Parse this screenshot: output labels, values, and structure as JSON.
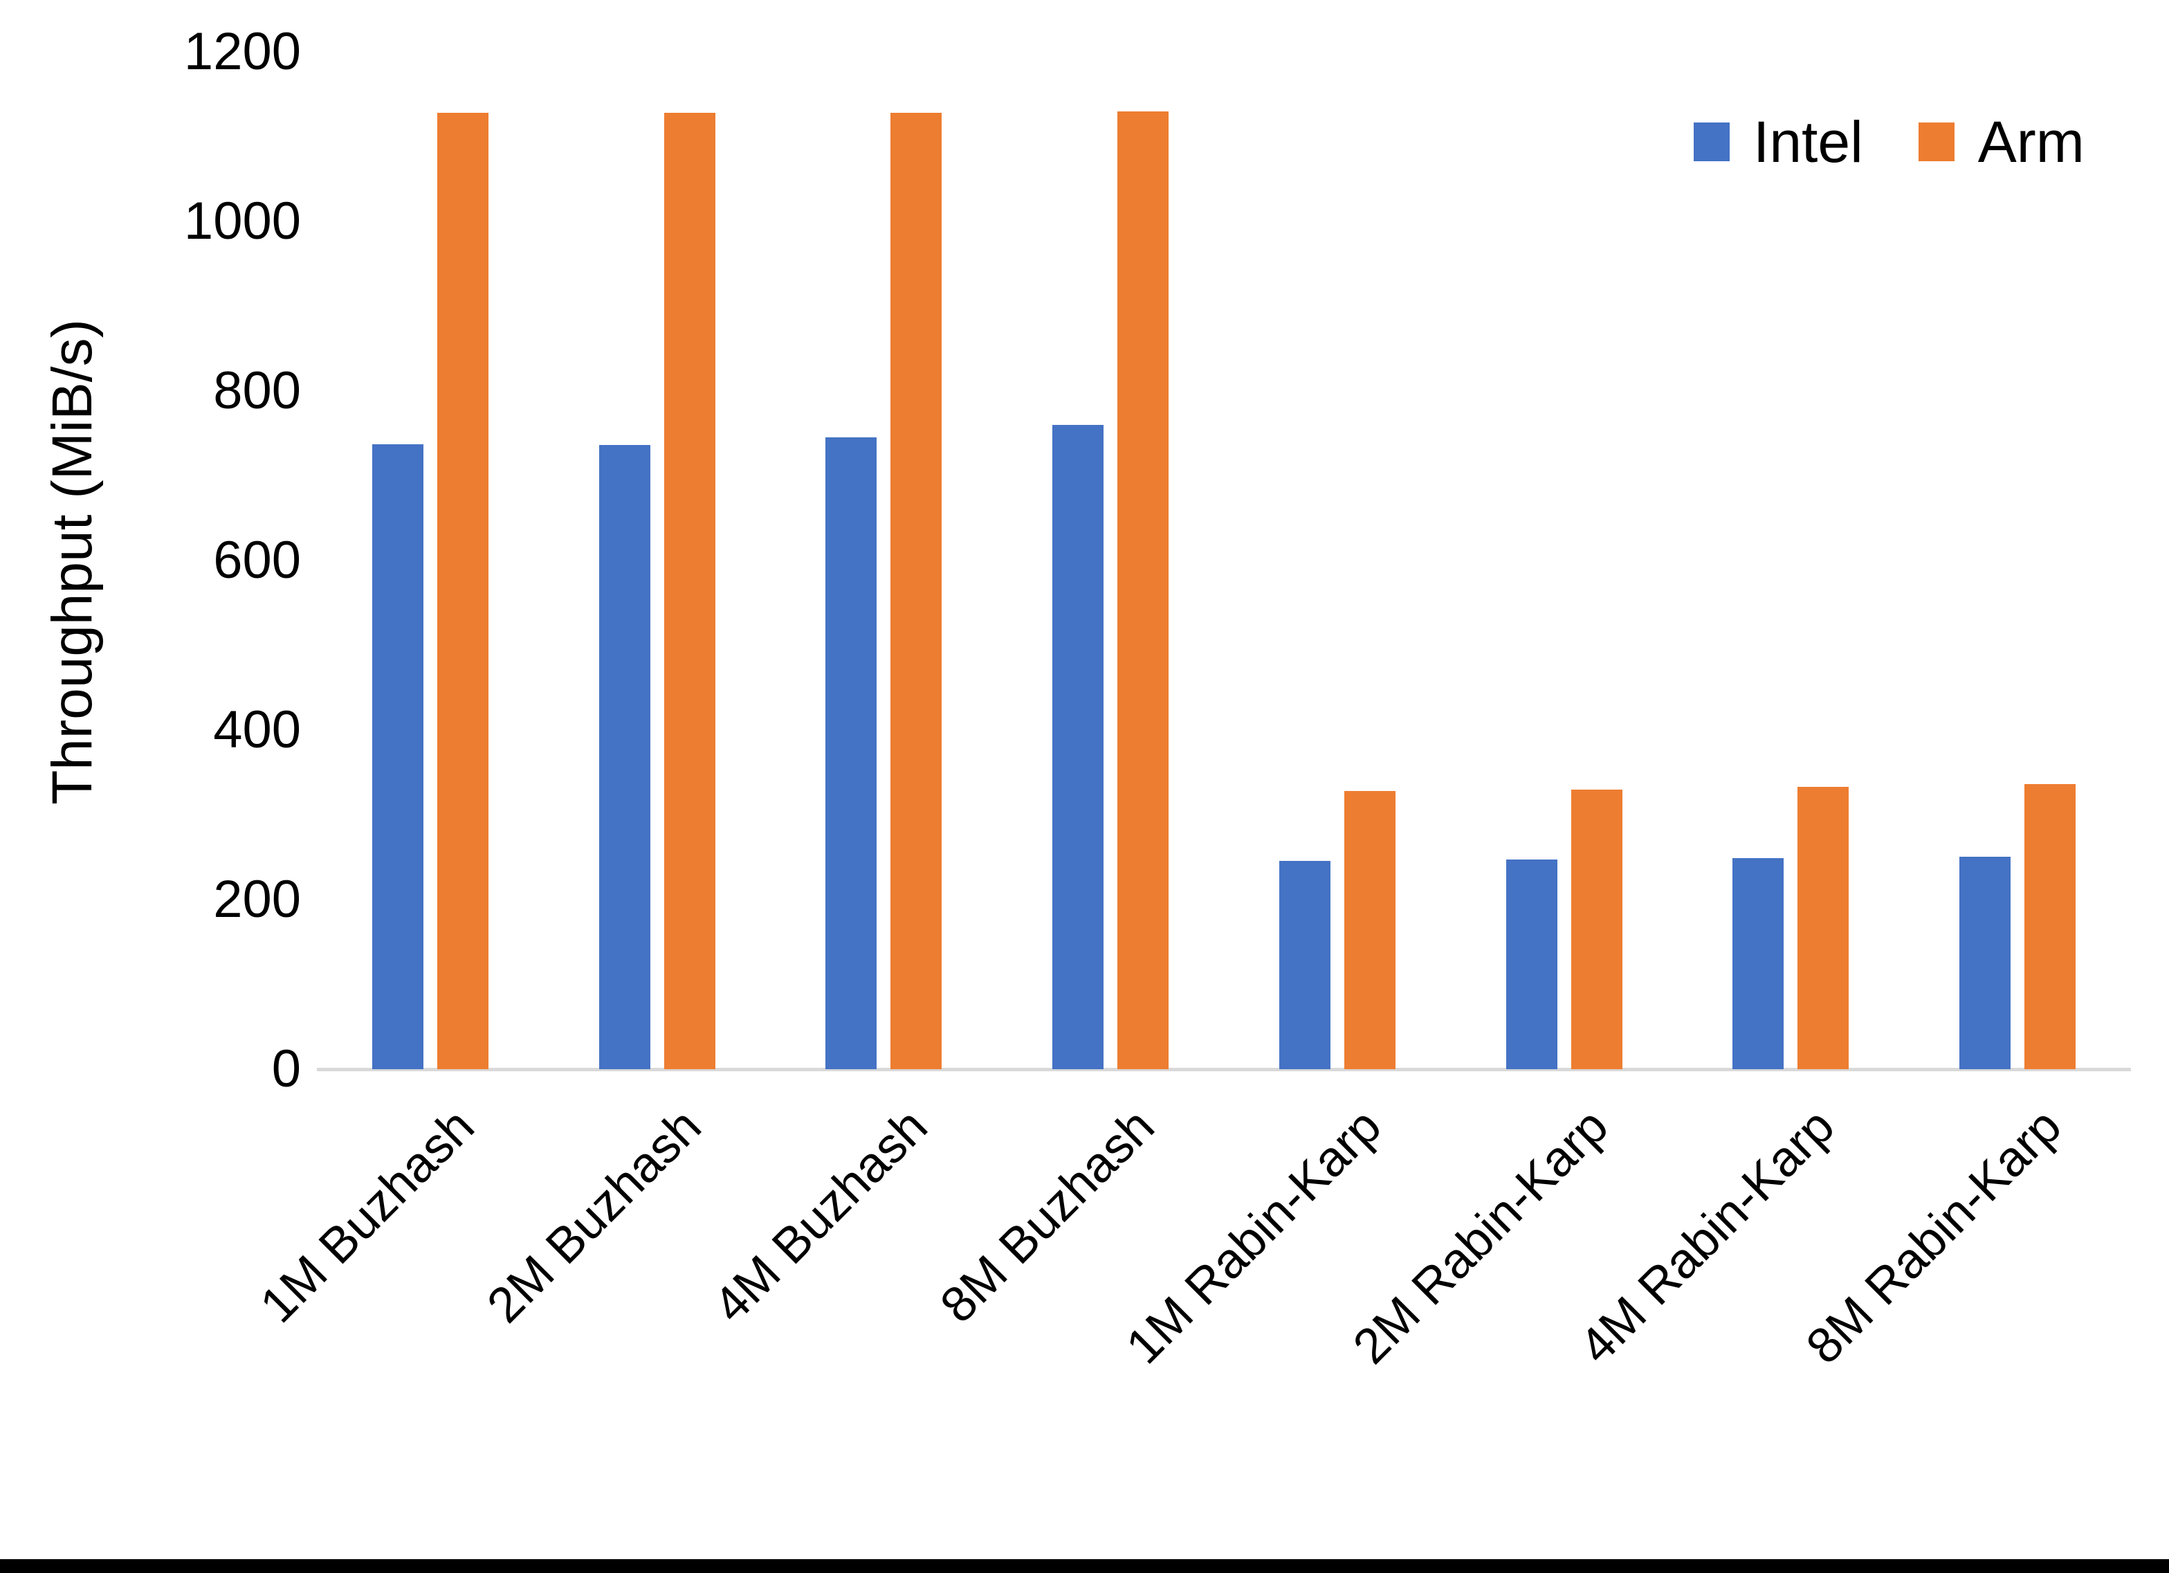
{
  "chart_data": {
    "type": "bar",
    "title": "",
    "xlabel": "",
    "ylabel": "Throughput (MiB/s)",
    "ylim": [
      0,
      1200
    ],
    "yticks": [
      0,
      200,
      400,
      600,
      800,
      1000,
      1200
    ],
    "grid": false,
    "legend_position": "top-right",
    "background_color": "#ffffff",
    "axis_line_color": "#d9d9d9",
    "categories": [
      "1M Buzhash",
      "2M Buzhash",
      "4M Buzhash",
      "8M Buzhash",
      "1M Rabin-Karp",
      "2M Rabin-Karp",
      "4M Rabin-Karp",
      "8M Rabin-Karp"
    ],
    "series": [
      {
        "name": "Intel",
        "color": "#4472C4",
        "values": [
          737,
          736,
          745,
          760,
          246,
          247,
          249,
          251
        ]
      },
      {
        "name": "Arm",
        "color": "#ED7D31",
        "values": [
          1128,
          1128,
          1128,
          1130,
          328,
          330,
          333,
          336
        ]
      }
    ]
  },
  "page": {
    "bottom_border_color": "#000000"
  }
}
